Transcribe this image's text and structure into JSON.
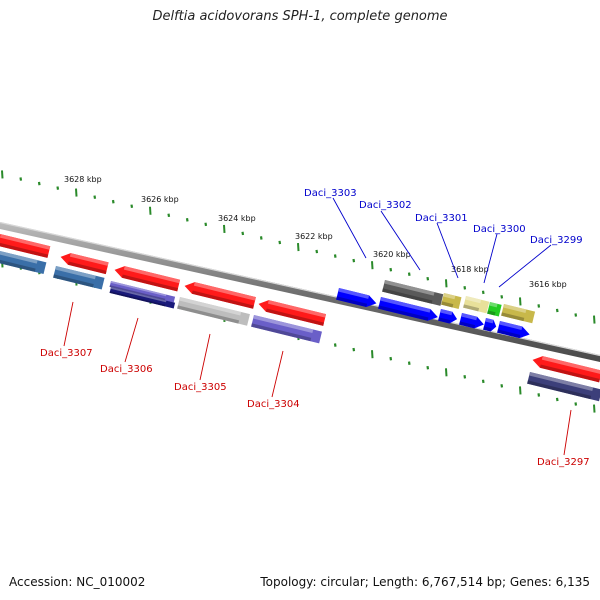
{
  "title": "Delftia acidovorans SPH-1, complete genome",
  "footer": {
    "accession": "Accession: NC_010002",
    "topology": "Topology: circular; Length: 6,767,514 bp; Genes: 6,135"
  },
  "colors": {
    "backbone": "#808080",
    "tick": "#2a8a2a",
    "label_top": "#0000cc",
    "label_bottom": "#cc0000",
    "gene_red": "#ff1a1a",
    "gene_blue": "#0000ff",
    "gene_steel": "#3a6fa8",
    "gene_navy": "#1a1a7a",
    "gene_lightgray": "#bdbdbd",
    "gene_slate": "#6a5fc8",
    "gene_darkgray": "#5a5a5a",
    "gene_olive": "#c8b84a",
    "gene_lightyellow": "#e8e09a",
    "gene_green": "#22cc22",
    "gene_darkslate": "#3c3f7a"
  },
  "scale_labels": [
    "3628 kbp",
    "3626 kbp",
    "3624 kbp",
    "3622 kbp",
    "3620 kbp",
    "3618 kbp",
    "3616 kbp"
  ],
  "labels_top": [
    "Daci_3303",
    "Daci_3302",
    "Daci_3301",
    "Daci_3300",
    "Daci_3299"
  ],
  "labels_bottom": [
    "Daci_3307",
    "Daci_3306",
    "Daci_3305",
    "Daci_3304",
    "Daci_3297"
  ]
}
